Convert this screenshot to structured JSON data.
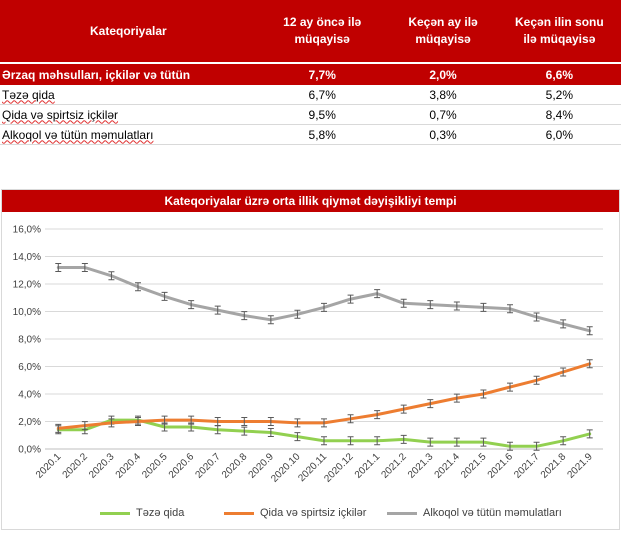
{
  "table": {
    "headers": [
      "Kateqoriyalar",
      "12 ay öncə ilə müqayisə",
      "Keçən ay ilə müqayisə",
      "Keçən ilin sonu ilə müqayisə"
    ],
    "summary": {
      "name": "Ərzaq məhsulları, içkilər və tütün",
      "values": [
        "7,7%",
        "2,0%",
        "6,6%"
      ]
    },
    "rows": [
      {
        "name": "Təzə qida",
        "values": [
          "6,7%",
          "3,8%",
          "5,2%"
        ]
      },
      {
        "name": "Qida və spirtsiz içkilər",
        "values": [
          "9,5%",
          "0,7%",
          "8,4%"
        ]
      },
      {
        "name": "Alkoqol və tütün məmulatları",
        "values": [
          "5,8%",
          "0,3%",
          "6,0%"
        ]
      }
    ]
  },
  "chart_data": {
    "type": "line",
    "title": "Kateqoriyalar üzrə orta illik qiymət dəyişikliyi tempi",
    "categories": [
      "2020.1",
      "2020.2",
      "2020.3",
      "2020.4",
      "2020.5",
      "2020.6",
      "2020.7",
      "2020.8",
      "2020.9",
      "2020.10",
      "2020.11",
      "2020.12",
      "2021.1",
      "2021.2",
      "2021.3",
      "2021.4",
      "2021.5",
      "2021.6",
      "2021.7",
      "2021.8",
      "2021.9"
    ],
    "series": [
      {
        "name": "Təzə qida",
        "color": "#92D050",
        "values": [
          1.4,
          1.4,
          2.1,
          2.1,
          1.6,
          1.6,
          1.4,
          1.3,
          1.2,
          0.9,
          0.6,
          0.6,
          0.6,
          0.7,
          0.5,
          0.5,
          0.5,
          0.2,
          0.2,
          0.6,
          1.1
        ]
      },
      {
        "name": "Qida və spirtsiz içkilər",
        "color": "#ED7D31",
        "values": [
          1.5,
          1.7,
          1.9,
          2.0,
          2.1,
          2.1,
          2.0,
          2.0,
          2.0,
          1.9,
          1.9,
          2.2,
          2.5,
          2.9,
          3.3,
          3.7,
          4.0,
          4.5,
          5.0,
          5.6,
          6.2
        ]
      },
      {
        "name": "Alkoqol və tütün məmulatları",
        "color": "#A5A5A5",
        "values": [
          13.2,
          13.2,
          12.6,
          11.8,
          11.1,
          10.5,
          10.1,
          9.7,
          9.4,
          9.8,
          10.3,
          10.9,
          11.3,
          10.6,
          10.5,
          10.4,
          10.3,
          10.2,
          9.6,
          9.1,
          8.6
        ]
      }
    ],
    "y_ticks": [
      "0,0%",
      "2,0%",
      "4,0%",
      "6,0%",
      "8,0%",
      "10,0%",
      "12,0%",
      "14,0%",
      "16,0%"
    ],
    "ylim": [
      0,
      16
    ],
    "error_bars": true,
    "grid": true,
    "legend_position": "bottom"
  }
}
